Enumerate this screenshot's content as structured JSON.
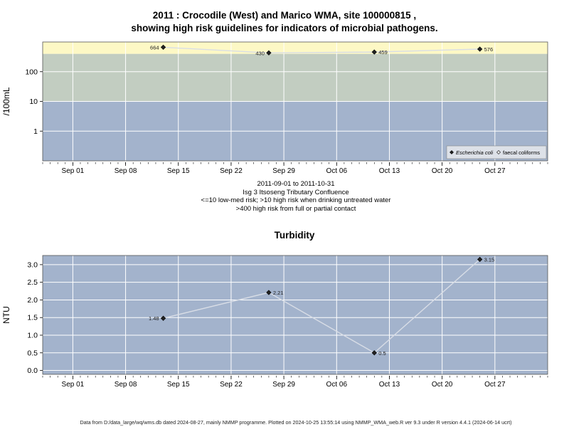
{
  "title_line1": "2011 : Crocodile (West) and Marico WMA, site 100000815 ,",
  "title_line2": "showing high risk guidelines for indicators of microbial pathogens.",
  "caption_lines": [
    "2011-09-01 to 2011-10-31",
    "Isg 3 Itsoseng Tributary Confluence",
    "<=10 low-med risk; >10 high risk when drinking untreated water",
    ">400 high risk from full or partial contact"
  ],
  "footer": "Data from D:/data_large/wq/wms.db dated 2024-08-27, mainly NMMP programme. Plotted on 2024-10-25 13:55:14 using NMMP_WMA_web.R ver 9.3 under R version 4.4.1 (2024-06-14 ucrt)",
  "colors": {
    "band_low": "#a3b3cc",
    "band_mid": "#c2cdc1",
    "band_high": "#fdf8c5",
    "panel_bg": "#a3b3cc",
    "grid": "#ffffff",
    "line": "#d8dde6",
    "point": "#222222"
  },
  "chart_data": [
    {
      "type": "line",
      "title": "",
      "xlabel": "",
      "ylabel": "/100mL",
      "yscale": "log10",
      "ylim": [
        0.1,
        1000
      ],
      "x_range": [
        "2011-08-28",
        "2011-11-03"
      ],
      "x_ticks": [
        {
          "date": "2011-09-01",
          "label": "Sep 01"
        },
        {
          "date": "2011-09-08",
          "label": "Sep 08"
        },
        {
          "date": "2011-09-15",
          "label": "Sep 15"
        },
        {
          "date": "2011-09-22",
          "label": "Sep 22"
        },
        {
          "date": "2011-09-29",
          "label": "Sep 29"
        },
        {
          "date": "2011-10-06",
          "label": "Oct 06"
        },
        {
          "date": "2011-10-13",
          "label": "Oct 13"
        },
        {
          "date": "2011-10-20",
          "label": "Oct 20"
        },
        {
          "date": "2011-10-27",
          "label": "Oct 27"
        }
      ],
      "y_ticks": [
        {
          "value": 1,
          "label": "1"
        },
        {
          "value": 10,
          "label": "10"
        },
        {
          "value": 100,
          "label": "100"
        }
      ],
      "risk_bands": [
        {
          "from": 0.1,
          "to": 10,
          "level": "low"
        },
        {
          "from": 10,
          "to": 400,
          "level": "mid"
        },
        {
          "from": 400,
          "to": 1000,
          "level": "high"
        }
      ],
      "series": [
        {
          "name": "Escherichia coli",
          "marker": "filled-diamond",
          "points": [
            {
              "x": "2011-09-13",
              "y": 664,
              "label": "664",
              "label_side": "left"
            },
            {
              "x": "2011-09-27",
              "y": 430,
              "label": "430",
              "label_side": "left"
            },
            {
              "x": "2011-10-11",
              "y": 459,
              "label": "459",
              "label_side": "right"
            },
            {
              "x": "2011-10-25",
              "y": 576,
              "label": "576",
              "label_side": "right"
            }
          ]
        },
        {
          "name": "faecal coliforms",
          "marker": "open-diamond",
          "points": []
        }
      ],
      "legend_position": "bottom-right",
      "grid": true
    },
    {
      "type": "line",
      "title": "Turbidity",
      "xlabel": "",
      "ylabel": "NTU",
      "ylim": [
        -0.11,
        3.26
      ],
      "x_range": [
        "2011-08-28",
        "2011-11-03"
      ],
      "x_ticks": [
        {
          "date": "2011-09-01",
          "label": "Sep 01"
        },
        {
          "date": "2011-09-08",
          "label": "Sep 08"
        },
        {
          "date": "2011-09-15",
          "label": "Sep 15"
        },
        {
          "date": "2011-09-22",
          "label": "Sep 22"
        },
        {
          "date": "2011-09-29",
          "label": "Sep 29"
        },
        {
          "date": "2011-10-06",
          "label": "Oct 06"
        },
        {
          "date": "2011-10-13",
          "label": "Oct 13"
        },
        {
          "date": "2011-10-20",
          "label": "Oct 20"
        },
        {
          "date": "2011-10-27",
          "label": "Oct 27"
        }
      ],
      "y_ticks": [
        {
          "value": 0.0,
          "label": "0.0"
        },
        {
          "value": 0.5,
          "label": "0.5"
        },
        {
          "value": 1.0,
          "label": "1.0"
        },
        {
          "value": 1.5,
          "label": "1.5"
        },
        {
          "value": 2.0,
          "label": "2.0"
        },
        {
          "value": 2.5,
          "label": "2.5"
        },
        {
          "value": 3.0,
          "label": "3.0"
        }
      ],
      "series": [
        {
          "name": "",
          "marker": "filled-diamond",
          "points": [
            {
              "x": "2011-09-13",
              "y": 1.48,
              "label": "1.48",
              "label_side": "left"
            },
            {
              "x": "2011-09-27",
              "y": 2.21,
              "label": "2.21",
              "label_side": "right"
            },
            {
              "x": "2011-10-11",
              "y": 0.5,
              "label": "0.5",
              "label_side": "right"
            },
            {
              "x": "2011-10-25",
              "y": 3.15,
              "label": "3.15",
              "label_side": "right"
            }
          ]
        }
      ],
      "grid": true
    }
  ]
}
